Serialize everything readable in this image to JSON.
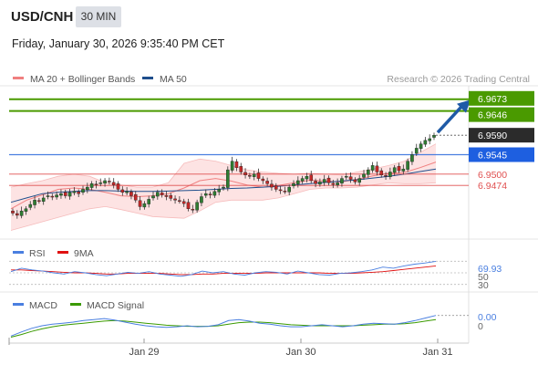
{
  "header": {
    "symbol": "USD/CNH",
    "timeframe": "30 MIN",
    "timestamp": "Friday, January 30, 2026 9:35:40 PM CET"
  },
  "colors": {
    "ma20": "#f08080",
    "ma50": "#1f4e8c",
    "bollinger_fill": "#fde0e0",
    "resistance": "#4a9a00",
    "pivot": "#4a7fe0",
    "support": "#e05050",
    "price": "#2b2b2b",
    "candle_up": "#2e7d32",
    "candle_down": "#c62828",
    "arrow": "#1f5aa6",
    "rsi": "#4a7fe0",
    "rsi_ma": "#e01010",
    "macd": "#4a7fe0",
    "macd_signal": "#3a9a00"
  },
  "chart_data": [
    {
      "type": "candlestick",
      "panel": "price",
      "legend": [
        {
          "name": "MA 20 + Bollinger Bands",
          "color": "#f08080"
        },
        {
          "name": "MA 50",
          "color": "#1f4e8c"
        }
      ],
      "watermark": "Research © 2026 Trading Central",
      "x_tick_labels": [
        "Jan 29",
        "Jan 30",
        "Jan 31"
      ],
      "ylim": [
        6.935,
        6.97
      ],
      "levels": [
        {
          "value": 6.9673,
          "label": "6.9673",
          "kind": "resistance"
        },
        {
          "value": 6.9646,
          "label": "6.9646",
          "kind": "resistance"
        },
        {
          "value": 6.959,
          "label": "6.9590",
          "kind": "price"
        },
        {
          "value": 6.9545,
          "label": "6.9545",
          "kind": "pivot"
        },
        {
          "value": 6.95,
          "label": "6.9500",
          "kind": "support"
        },
        {
          "value": 6.9474,
          "label": "6.9474",
          "kind": "support"
        }
      ],
      "closes": [
        6.941,
        6.9405,
        6.9415,
        6.942,
        6.943,
        6.944,
        6.9438,
        6.9445,
        6.945,
        6.9448,
        6.9452,
        6.9455,
        6.945,
        6.9458,
        6.946,
        6.9455,
        6.9465,
        6.947,
        6.9478,
        6.9475,
        6.948,
        6.9485,
        6.9482,
        6.9475,
        6.9465,
        6.9458,
        6.946,
        6.945,
        6.944,
        6.9425,
        6.9432,
        6.9442,
        6.945,
        6.9458,
        6.9452,
        6.9448,
        6.9444,
        6.944,
        6.9438,
        6.9432,
        6.942,
        6.9418,
        6.9435,
        6.9448,
        6.9455,
        6.9452,
        6.946,
        6.9465,
        6.947,
        6.951,
        6.953,
        6.9515,
        6.9505,
        6.9498,
        6.9495,
        6.95,
        6.949,
        6.9485,
        6.9478,
        6.947,
        6.9465,
        6.9462,
        6.946,
        6.947,
        6.9478,
        6.9485,
        6.949,
        6.9495,
        6.9485,
        6.9478,
        6.9482,
        6.9488,
        6.948,
        6.9476,
        6.948,
        6.949,
        6.9495,
        6.9488,
        6.9482,
        6.949,
        6.95,
        6.951,
        6.952,
        6.9505,
        6.9498,
        6.9495,
        6.9505,
        6.9515,
        6.9508,
        6.9512,
        6.953,
        6.9545,
        6.956,
        6.957,
        6.9578,
        6.9582,
        6.959
      ],
      "series": [
        {
          "name": "MA 50",
          "values": [
            6.9435,
            6.9445,
            6.9455,
            6.9458,
            6.946,
            6.9462,
            6.9462,
            6.9461,
            6.946,
            6.946,
            6.9461,
            6.9462,
            6.9463,
            6.9465,
            6.9467,
            6.9468,
            6.947,
            6.9472,
            6.9475,
            6.9478,
            6.9481,
            6.9484,
            6.9487,
            6.9491,
            6.9495,
            6.95,
            6.9506,
            6.9512
          ]
        },
        {
          "name": "MA 20",
          "values": [
            6.942,
            6.944,
            6.9452,
            6.9465,
            6.9468,
            6.9465,
            6.9458,
            6.945,
            6.9448,
            6.945,
            6.9455,
            6.9468,
            6.9485,
            6.949,
            6.9484,
            6.9475,
            6.947,
            6.9474,
            6.948,
            6.9486,
            6.9484,
            6.9482,
            6.9488,
            6.9496,
            6.9502,
            6.9504,
            6.9515,
            6.9528
          ]
        },
        {
          "name": "Bollinger Upper",
          "values": [
            6.947,
            6.9478,
            6.9485,
            6.9495,
            6.95,
            6.9495,
            6.948,
            6.9475,
            6.947,
            6.947,
            6.948,
            6.9525,
            6.9535,
            6.953,
            6.952,
            6.951,
            6.9505,
            6.9502,
            6.95,
            6.9502,
            6.95,
            6.9498,
            6.9505,
            6.9512,
            6.952,
            6.953,
            6.955,
            6.957
          ]
        },
        {
          "name": "Bollinger Lower",
          "values": [
            6.937,
            6.938,
            6.939,
            6.94,
            6.941,
            6.942,
            6.9425,
            6.9418,
            6.941,
            6.9402,
            6.94,
            6.9398,
            6.9415,
            6.9435,
            6.944,
            6.944,
            6.944,
            6.9445,
            6.9455,
            6.9465,
            6.9468,
            6.9468,
            6.947,
            6.9475,
            6.948,
            6.9478,
            6.9478,
            6.948
          ]
        }
      ]
    },
    {
      "type": "line",
      "panel": "rsi",
      "legend": [
        {
          "name": "RSI",
          "color": "#4a7fe0"
        },
        {
          "name": "9MA",
          "color": "#e01010"
        }
      ],
      "ylim": [
        20,
        80
      ],
      "reference_levels": [
        70,
        50,
        30
      ],
      "tick_labels": [
        "70",
        "50",
        "30"
      ],
      "current_value": "69.93",
      "series": [
        {
          "name": "RSI",
          "values": [
            52,
            58,
            55,
            53,
            50,
            48,
            52,
            50,
            47,
            45,
            48,
            51,
            49,
            52,
            48,
            46,
            44,
            47,
            53,
            50,
            52,
            48,
            46,
            50,
            52,
            51,
            48,
            53,
            50,
            47,
            46,
            49,
            50,
            52,
            55,
            60,
            58,
            62,
            65,
            67,
            69.93
          ]
        },
        {
          "name": "9MA",
          "values": [
            55,
            55,
            54,
            53,
            52,
            51,
            50,
            50,
            49,
            48,
            48,
            49,
            49,
            49,
            49,
            48,
            47,
            47,
            48,
            48,
            49,
            49,
            49,
            49,
            50,
            50,
            50,
            50,
            50,
            50,
            49,
            49,
            49,
            50,
            51,
            52,
            54,
            56,
            58,
            60,
            62
          ]
        }
      ]
    },
    {
      "type": "line",
      "panel": "macd",
      "legend": [
        {
          "name": "MACD",
          "color": "#4a7fe0"
        },
        {
          "name": "MACD Signal",
          "color": "#3a9a00"
        }
      ],
      "ylim": [
        -0.003,
        0.003
      ],
      "reference_levels": [
        0
      ],
      "tick_labels": [
        "0"
      ],
      "current_value": "0.00",
      "series": [
        {
          "name": "MACD",
          "values": [
            -0.002,
            -0.0012,
            -0.0005,
            0.0,
            0.0003,
            0.0005,
            0.0007,
            0.001,
            0.0012,
            0.0014,
            0.0011,
            0.0007,
            0.0003,
            0.0,
            -0.0002,
            -0.0003,
            -0.0002,
            0.0,
            -0.0002,
            -0.0001,
            0.0002,
            0.001,
            0.0012,
            0.0009,
            0.0005,
            0.0003,
            0.0,
            -0.0002,
            -0.0002,
            0.0,
            0.0002,
            0.0,
            -0.0002,
            0.0,
            0.0003,
            0.0005,
            0.0004,
            0.0003,
            0.0006,
            0.001,
            0.0015,
            0.002
          ]
        },
        {
          "name": "MACD Signal",
          "values": [
            -0.0022,
            -0.0017,
            -0.0011,
            -0.0006,
            -0.0002,
            0.0001,
            0.0003,
            0.0005,
            0.0007,
            0.0009,
            0.001,
            0.0009,
            0.0007,
            0.0005,
            0.0003,
            0.0001,
            0.0,
            -0.0001,
            -0.0001,
            -0.0001,
            0.0,
            0.0003,
            0.0006,
            0.0007,
            0.0007,
            0.0006,
            0.0004,
            0.0002,
            0.0001,
            0.0,
            0.0,
            0.0,
            0.0,
            0.0,
            0.0001,
            0.0002,
            0.0003,
            0.0003,
            0.0004,
            0.0006,
            0.0009,
            0.0012
          ]
        }
      ]
    }
  ]
}
